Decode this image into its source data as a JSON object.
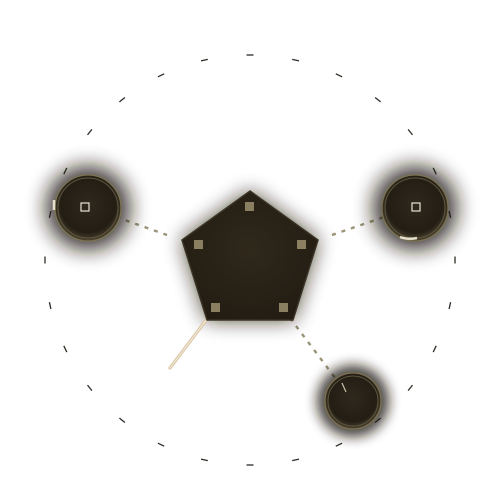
{
  "scene": {
    "type": "puzzle-board",
    "description_visible_text": "",
    "colors": {
      "background": "#ffffff",
      "node_fill": "#2a2419",
      "node_rim": "#7d7253",
      "pentagon_fill": "#2c2518",
      "port_fill": "#8c8263",
      "connector": "#9f9b82",
      "dial_tick": "#2d2b25",
      "cable": "#e6d3b6"
    },
    "elements": {
      "central_hub": "pentagon-hub",
      "left_node": "round-node-left",
      "right_node": "round-node-right",
      "bottom_node": "round-node-bottom",
      "cable": "cable-handle"
    }
  }
}
